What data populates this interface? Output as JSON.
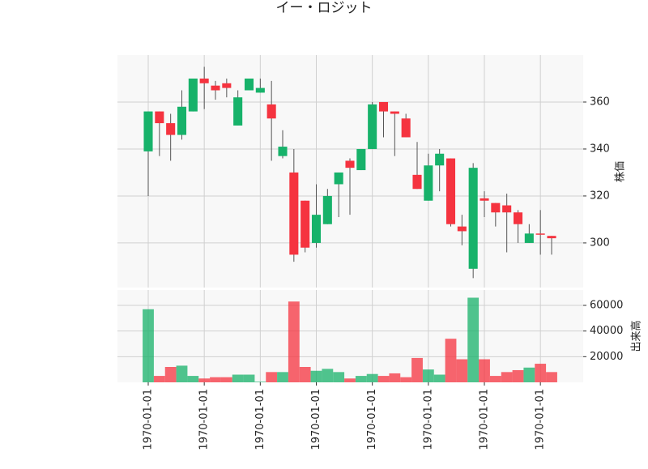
{
  "chart_data": {
    "type": "candlestick",
    "title": "イー・ロジット",
    "categories": [
      "1970-01-01",
      null,
      null,
      null,
      null,
      "1970-01-01",
      null,
      null,
      null,
      null,
      "1970-01-01",
      null,
      null,
      null,
      null,
      "1970-01-01",
      null,
      null,
      null,
      null,
      "1970-01-01",
      null,
      null,
      null,
      null,
      "1970-01-01",
      null,
      null,
      null,
      null,
      "1970-01-01",
      null,
      null,
      null,
      null,
      "1970-01-01",
      null
    ],
    "open": [
      339,
      356,
      351,
      346,
      356,
      370,
      367,
      368,
      350,
      365,
      364,
      359,
      337,
      330,
      318,
      300,
      308,
      325,
      335,
      331,
      340,
      360,
      356,
      353,
      329,
      318,
      333,
      336,
      307,
      289,
      319,
      317,
      316,
      313,
      300,
      304,
      303
    ],
    "high": [
      356,
      356,
      355,
      365,
      370,
      375,
      369,
      370,
      365,
      370,
      370,
      369,
      348,
      340,
      318,
      325,
      323,
      330,
      336,
      340,
      360,
      360,
      356,
      355,
      343,
      338,
      340,
      336,
      312,
      334,
      322,
      317,
      321,
      314,
      308,
      314,
      303
    ],
    "low": [
      320,
      337,
      335,
      344,
      356,
      357,
      361,
      362,
      350,
      365,
      364,
      335,
      336,
      292,
      296,
      298,
      308,
      311,
      312,
      331,
      340,
      345,
      337,
      345,
      323,
      318,
      322,
      307,
      299,
      285,
      311,
      307,
      296,
      300,
      300,
      295,
      295
    ],
    "close": [
      356,
      351,
      346,
      358,
      370,
      368,
      365,
      366,
      362,
      370,
      366,
      353,
      341,
      295,
      298,
      312,
      320,
      330,
      332,
      340,
      359,
      356,
      355,
      345,
      323,
      333,
      338,
      308,
      305,
      332,
      318,
      313,
      313,
      308,
      304,
      303.5,
      302
    ],
    "volume": [
      57000,
      5000,
      12000,
      13000,
      5000,
      3000,
      4000,
      4000,
      6000,
      6000,
      500,
      8000,
      8000,
      63000,
      12000,
      9000,
      10500,
      8000,
      3000,
      5000,
      6500,
      5000,
      7000,
      4000,
      19000,
      10000,
      6000,
      34000,
      18000,
      66000,
      18000,
      5000,
      8000,
      9500,
      11500,
      14500,
      8000
    ],
    "up_color": "#17b26a",
    "down_color": "#f5333f",
    "ylabel": "株価",
    "ylim": [
      281,
      380
    ],
    "yticks": [
      300,
      320,
      340,
      360
    ],
    "volume_label": "出来高",
    "volume_ylim": [
      0,
      72000
    ],
    "volume_ticks": [
      20000,
      40000,
      60000
    ],
    "grid": true
  }
}
